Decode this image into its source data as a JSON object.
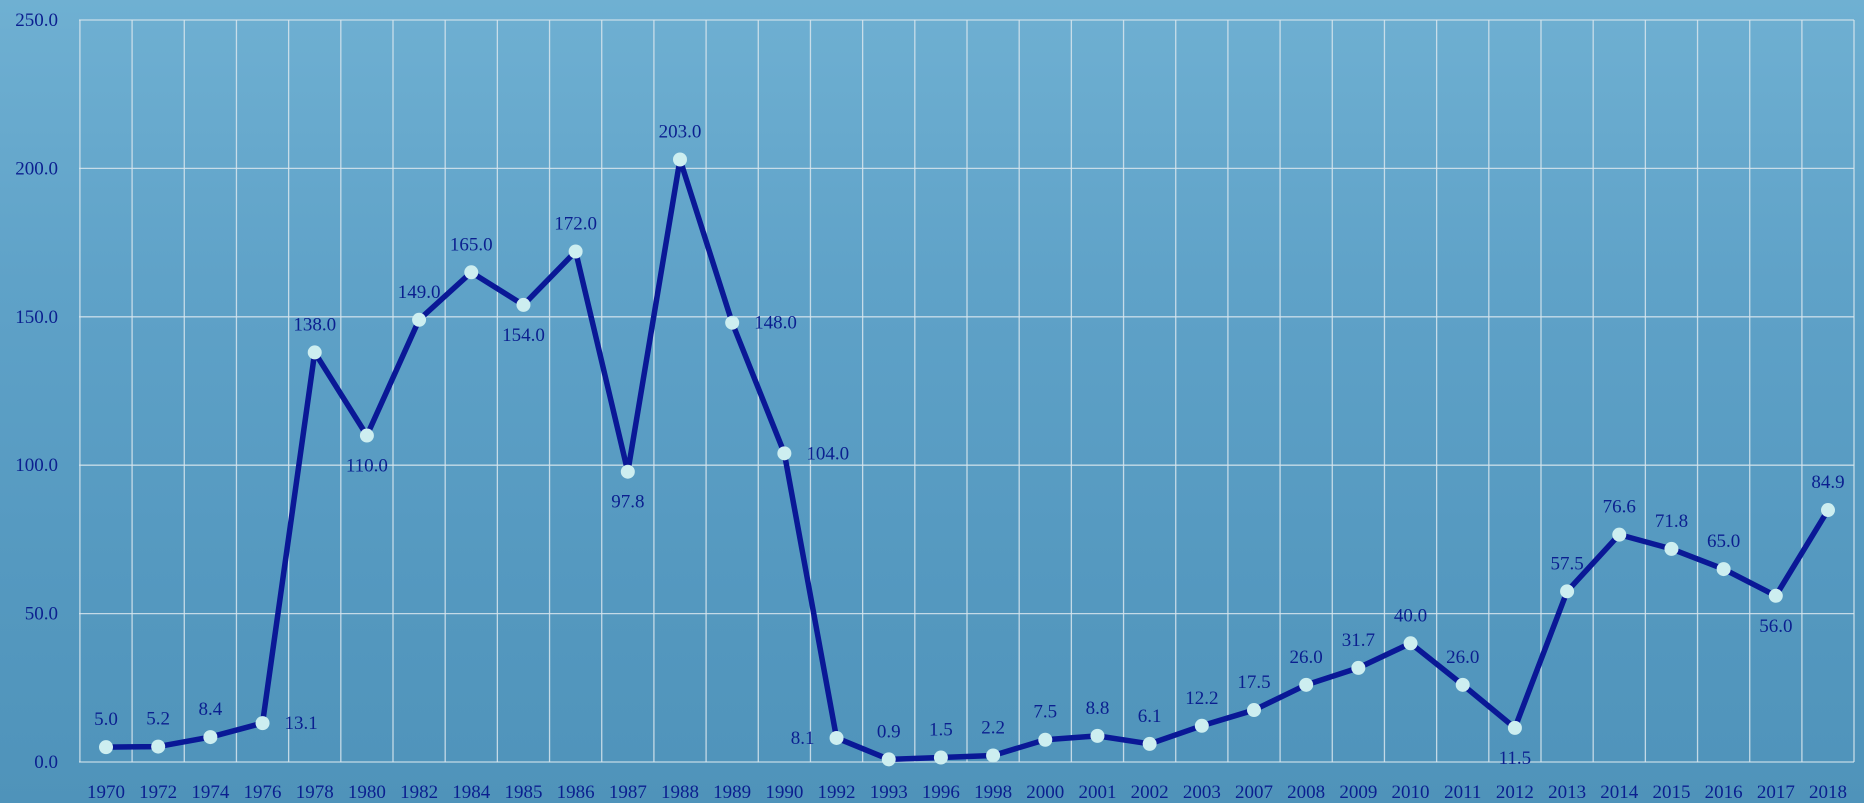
{
  "chart_data": {
    "type": "line",
    "title": "",
    "xlabel": "",
    "ylabel": "",
    "ylim": [
      0,
      250
    ],
    "y_ticks": [
      "0.0",
      "50.0",
      "100.0",
      "150.0",
      "200.0",
      "250.0"
    ],
    "grid": true,
    "categories": [
      "1970",
      "1972",
      "1974",
      "1976",
      "1978",
      "1980",
      "1982",
      "1984",
      "1985",
      "1986",
      "1987",
      "1988",
      "1989",
      "1990",
      "1992",
      "1993",
      "1996",
      "1998",
      "2000",
      "2001",
      "2002",
      "2003",
      "2007",
      "2008",
      "2009",
      "2010",
      "2011",
      "2012",
      "2013",
      "2014",
      "2015",
      "2016",
      "2017",
      "2018"
    ],
    "series": [
      {
        "values": [
          5.0,
          5.2,
          8.4,
          13.1,
          138.0,
          110.0,
          149.0,
          165.0,
          154.0,
          172.0,
          97.8,
          203.0,
          148.0,
          104.0,
          8.1,
          0.9,
          1.5,
          2.2,
          7.5,
          8.8,
          6.1,
          12.2,
          17.5,
          26.0,
          31.7,
          40.0,
          26.0,
          11.5,
          57.5,
          76.6,
          71.8,
          65.0,
          56.0,
          84.9
        ],
        "labels": [
          "5.0",
          "5.2",
          "8.4",
          "13.1",
          "138.0",
          "110.0",
          "149.0",
          "165.0",
          "154.0",
          "172.0",
          "97.8",
          "203.0",
          "148.0",
          "104.0",
          "8.1",
          "0.9",
          "1.5",
          "2.2",
          "7.5",
          "8.8",
          "6.1",
          "12.2",
          "17.5",
          "26.0",
          "31.7",
          "40.0",
          "26.0",
          "11.5",
          "57.5",
          "76.6",
          "71.8",
          "65.0",
          "56.0",
          "84.9"
        ],
        "color": "#0a1896"
      }
    ],
    "point_color": "#cdeef0",
    "text_color": "#0b1f8f",
    "grid_color": "#d8e6ee"
  }
}
